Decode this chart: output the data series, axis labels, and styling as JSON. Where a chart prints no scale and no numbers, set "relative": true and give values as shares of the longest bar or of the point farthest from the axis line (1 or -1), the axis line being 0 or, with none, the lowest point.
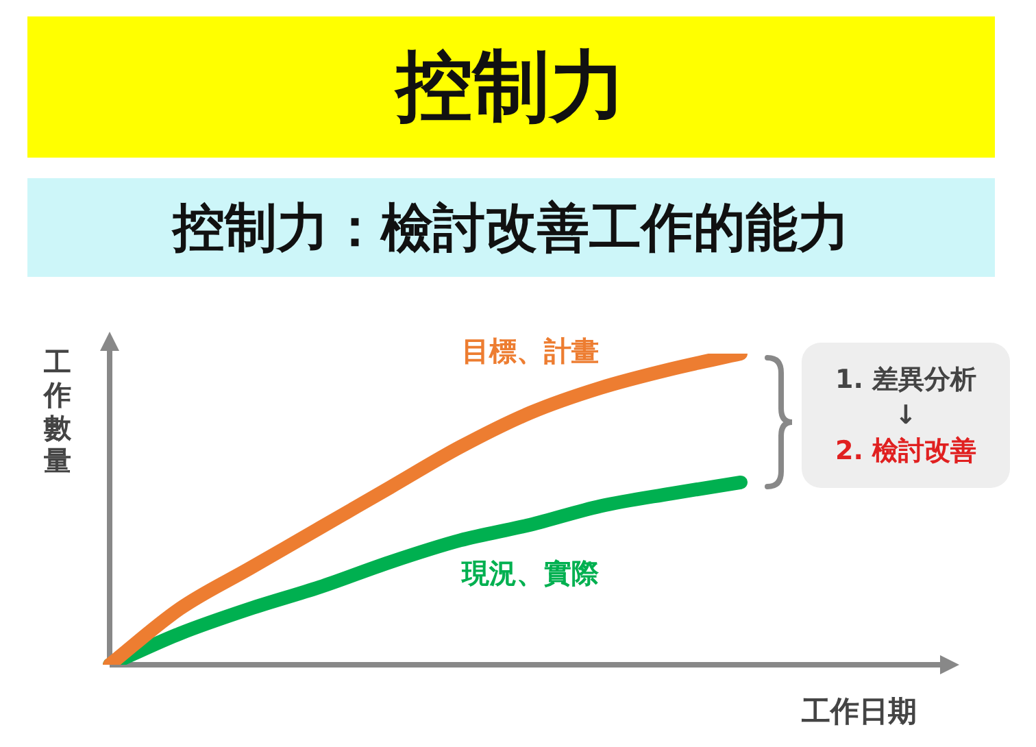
{
  "chart_data": {
    "type": "line",
    "title": "控制力",
    "subtitle": "控制力：檢討改善工作的能力",
    "xlabel": "工作日期",
    "ylabel": "工作數量",
    "relative": true,
    "categories": [
      null,
      null,
      null,
      null,
      null,
      null,
      null,
      null,
      null,
      null,
      null,
      null,
      null
    ],
    "series": [
      {
        "name": "目標、計畫",
        "color": "#ed7d31",
        "values": [
          0,
          0.18,
          0.31,
          0.44,
          0.57,
          0.7,
          0.81,
          0.89,
          0.95,
          1,
          null,
          null,
          null
        ]
      },
      {
        "name": "現況、實際",
        "color": "#00b050",
        "values": [
          0,
          0.1,
          0.18,
          0.25,
          0.33,
          0.4,
          0.45,
          0.51,
          0.55,
          0.586,
          null,
          null,
          null
        ]
      }
    ],
    "annotations": [
      "1. 差異分析",
      "↓",
      "2. 檢討改善"
    ]
  }
}
